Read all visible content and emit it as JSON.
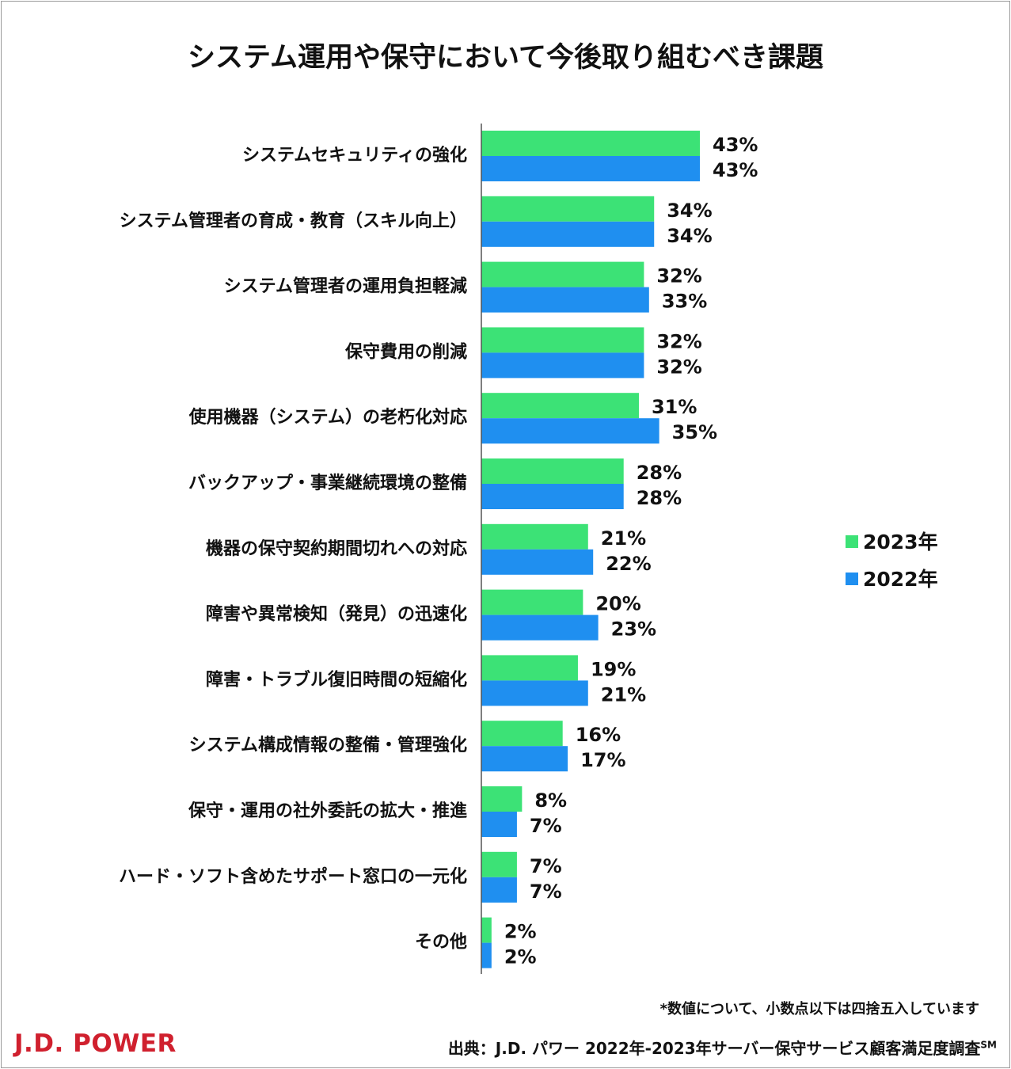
{
  "title": "システム運用や保守において今後取り組むべき課題",
  "chart_data": {
    "type": "bar",
    "orientation": "horizontal",
    "title": "システム運用や保守において今後取り組むべき課題",
    "categories": [
      "システムセキュリティの強化",
      "システム管理者の育成・教育（スキル向上）",
      "システム管理者の運用負担軽減",
      "保守費用の削減",
      "使用機器（システム）の老朽化対応",
      "バックアップ・事業継続環境の整備",
      "機器の保守契約期間切れへの対応",
      "障害や異常検知（発見）の迅速化",
      "障害・トラブル復旧時間の短縮化",
      "システム構成情報の整備・管理強化",
      "保守・運用の社外委託の拡大・推進",
      "ハード・ソフト含めたサポート窓口の一元化",
      "その他"
    ],
    "series": [
      {
        "name": "2023年",
        "color": "#3ce276",
        "values": [
          43,
          34,
          32,
          32,
          31,
          28,
          21,
          20,
          19,
          16,
          8,
          7,
          2
        ]
      },
      {
        "name": "2022年",
        "color": "#1f8ff0",
        "values": [
          43,
          34,
          33,
          32,
          35,
          28,
          22,
          23,
          21,
          17,
          7,
          7,
          2
        ]
      }
    ],
    "value_suffix": "%",
    "xlim": [
      0,
      43
    ],
    "legend_position": "right"
  },
  "footnote": "*数値について、小数点以下は四捨五入しています",
  "logo": "J.D. POWER",
  "source": "出典：J.D. パワー 2022年-2023年サーバー保守サービス顧客満足度調査",
  "source_mark": "SM"
}
